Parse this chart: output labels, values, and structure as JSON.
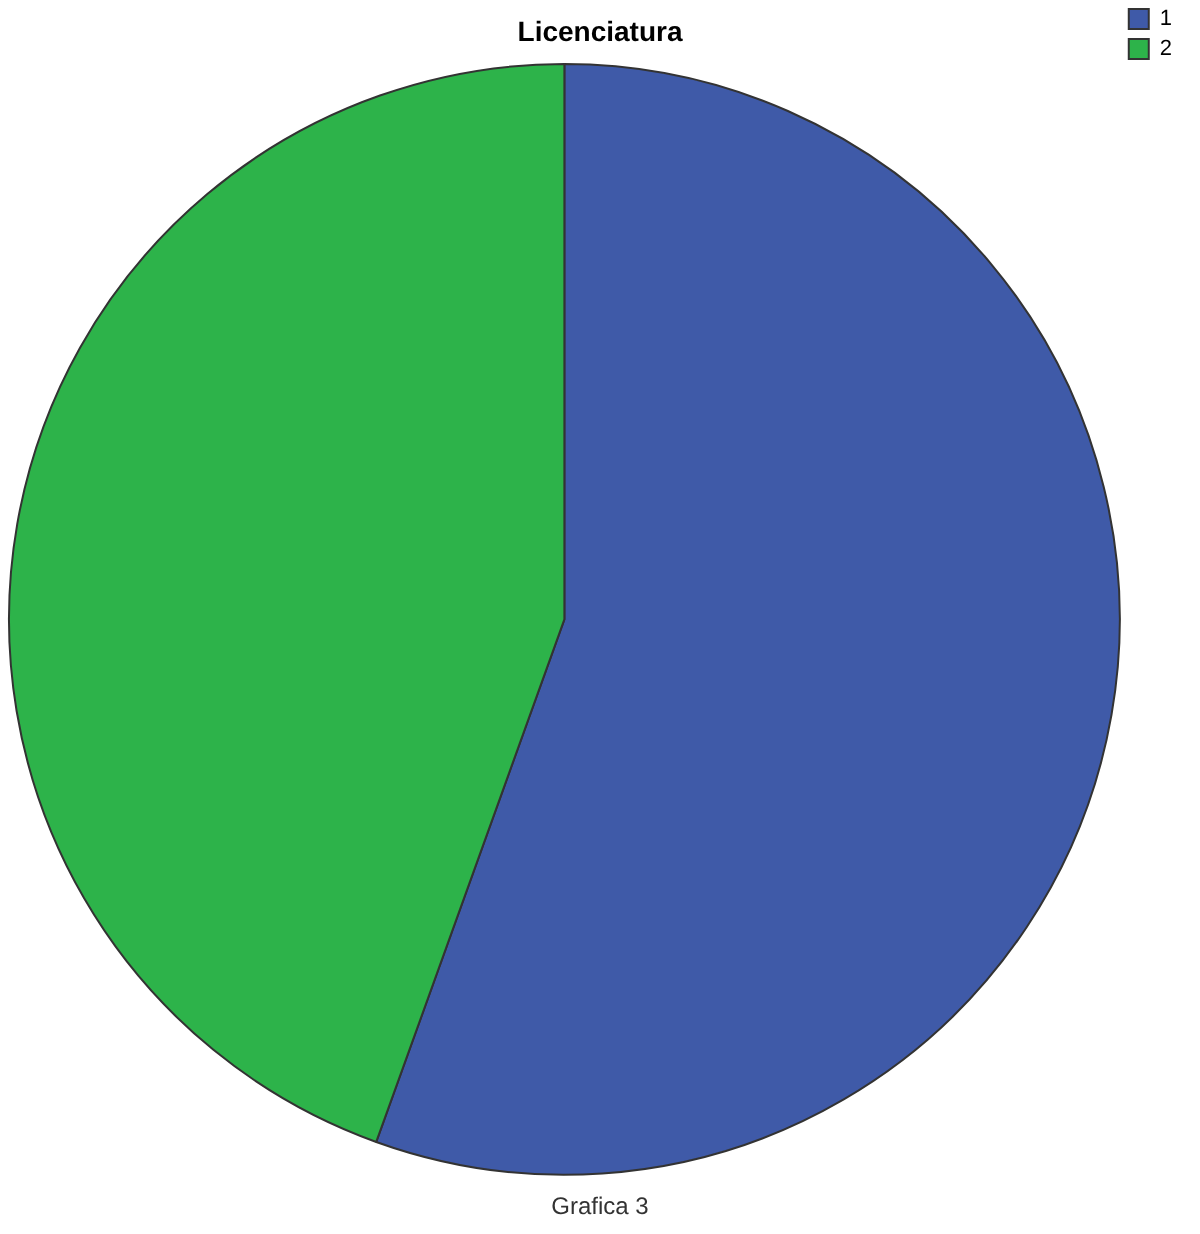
{
  "chart_data": {
    "type": "pie",
    "title": "Licenciatura",
    "categories": [
      "1",
      "2"
    ],
    "values": [
      55.5,
      44.5
    ],
    "colors": [
      "#3f5aa8",
      "#2db34a"
    ],
    "legend": "top right",
    "annotations": [
      "Grafica 3"
    ]
  }
}
